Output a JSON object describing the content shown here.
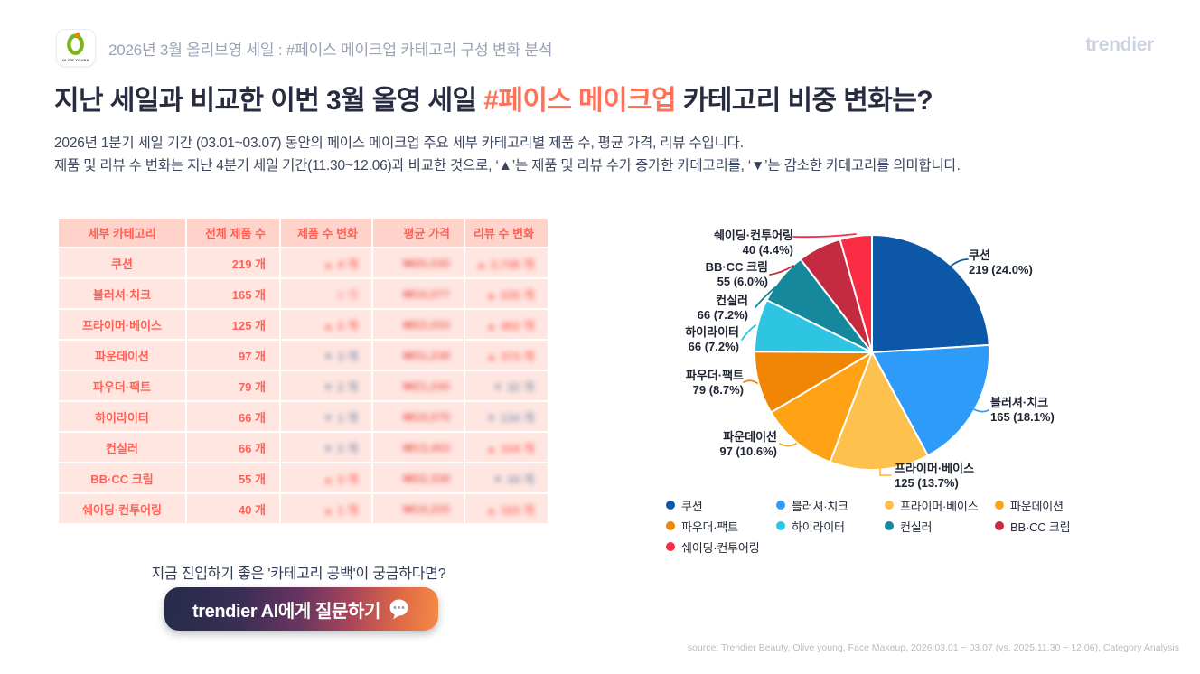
{
  "header": {
    "logo": "olive-young-app-icon",
    "logo_text": "OLIVE YOUNG",
    "title": "2026년 3월 올리브영 세일 : #페이스 메이크업 카테고리 구성 변화 분석",
    "brand": "trendier"
  },
  "headline": {
    "pre": "지난 세일과 비교한 이번 3월 올영 세일 ",
    "highlight": "#페이스 메이크업",
    "post": " 카테고리 비중 변화는?"
  },
  "description": {
    "line1": "2026년 1분기 세일 기간 (03.01~03.07) 동안의 페이스 메이크업 주요 세부 카테고리별 제품 수, 평균 가격, 리뷰 수입니다.",
    "line2": "제품 및 리뷰 수 변화는 지난 4분기 세일 기간(11.30~12.06)과 비교한 것으로, ‘▲’는 제품 및 리뷰 수가 증가한 카테고리를, ‘▼’는 감소한 카테고리를 의미합니다."
  },
  "table": {
    "columns": [
      "세부 카테고리",
      "전체 제품 수",
      "제품 수 변화",
      "평균 가격",
      "리뷰 수 변화"
    ],
    "rows": [
      {
        "category": "쿠션",
        "total": "219 개",
        "product_change": "▲ 4 개",
        "product_dir": "up",
        "avg_price": "₩26,030",
        "review_change": "▲ 2,748 개",
        "review_dir": "up"
      },
      {
        "category": "블러셔·치크",
        "total": "165 개",
        "product_change": "0 개",
        "product_dir": "zero",
        "avg_price": "₩16,077",
        "review_change": "▲ 226 개",
        "review_dir": "up"
      },
      {
        "category": "프라이머·베이스",
        "total": "125 개",
        "product_change": "▲ 2 개",
        "product_dir": "up",
        "avg_price": "₩22,033",
        "review_change": "▲ 462 개",
        "review_dir": "up"
      },
      {
        "category": "파운데이션",
        "total": "97 개",
        "product_change": "▼ 3 개",
        "product_dir": "down",
        "avg_price": "₩31,238",
        "review_change": "▲ 373 개",
        "review_dir": "up"
      },
      {
        "category": "파우더·팩트",
        "total": "79 개",
        "product_change": "▼ 2 개",
        "product_dir": "down",
        "avg_price": "₩21,240",
        "review_change": "▼ 32 개",
        "review_dir": "down"
      },
      {
        "category": "하이라이터",
        "total": "66 개",
        "product_change": "▼ 1 개",
        "product_dir": "down",
        "avg_price": "₩18,075",
        "review_change": "▼ 134 개",
        "review_dir": "down"
      },
      {
        "category": "컨실러",
        "total": "66 개",
        "product_change": "▼ 2 개",
        "product_dir": "down",
        "avg_price": "₩13,463",
        "review_change": "▲ 104 개",
        "review_dir": "up"
      },
      {
        "category": "BB·CC 크림",
        "total": "55 개",
        "product_change": "▲ 3 개",
        "product_dir": "up",
        "avg_price": "₩22,338",
        "review_change": "▼ 34 개",
        "review_dir": "down"
      },
      {
        "category": "쉐이딩·컨투어링",
        "total": "40 개",
        "product_change": "▲ 1 개",
        "product_dir": "up",
        "avg_price": "₩19,205",
        "review_change": "▲ 163 개",
        "review_dir": "up"
      }
    ]
  },
  "chart_data": {
    "type": "pie",
    "categories": [
      "쿠션",
      "블러셔·치크",
      "프라이머·베이스",
      "파운데이션",
      "파우더·팩트",
      "하이라이터",
      "컨실러",
      "BB·CC 크림",
      "쉐이딩·컨투어링"
    ],
    "values": [
      219,
      165,
      125,
      97,
      79,
      66,
      66,
      55,
      40
    ],
    "percents": [
      24.0,
      18.1,
      13.7,
      10.6,
      8.7,
      7.2,
      7.2,
      6.0,
      4.4
    ],
    "colors": [
      "#0d57a7",
      "#2e9bf8",
      "#ffc14e",
      "#ffa314",
      "#ef8502",
      "#2ec5e3",
      "#15889c",
      "#c42b40",
      "#fb2b43"
    ],
    "start_angle_deg": 0,
    "direction": "clockwise",
    "legend_position": "bottom"
  },
  "cta": {
    "caption": "지금 진입하기 좋은 '카테고리 공백'이 궁금하다면?",
    "button_label": "trendier AI에게 질문하기",
    "button_icon": "speech-bubble-icon"
  },
  "footer": {
    "source": "source: Trendier Beauty, Olive young, Face Makeup, 2026.03.01 ~ 03.07 (vs. 2025.11.30 ~ 12.06), Category Analysis"
  }
}
